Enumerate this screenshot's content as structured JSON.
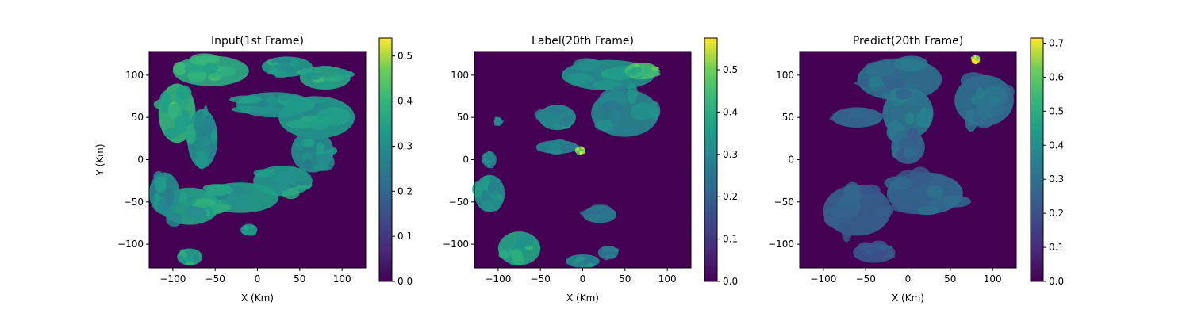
{
  "chart_data": [
    {
      "type": "heatmap",
      "title": "Input(1st Frame)",
      "xlabel": "X (Km)",
      "ylabel": "Y (Km)",
      "xlim": [
        -128,
        128
      ],
      "ylim": [
        -128,
        128
      ],
      "xticks": [
        -100,
        -50,
        0,
        50,
        100
      ],
      "yticks": [
        -100,
        -50,
        0,
        50,
        100
      ],
      "xtick_labels": [
        "−100",
        "−50",
        "0",
        "50",
        "100"
      ],
      "ytick_labels": [
        "−100",
        "−50",
        "0",
        "50",
        "100"
      ],
      "colormap": "viridis",
      "background_color": "#440154",
      "colorbar": {
        "min": 0,
        "max": 0.54,
        "ticks": [
          0,
          0.1,
          0.2,
          0.3,
          0.4,
          0.5
        ],
        "tick_labels": [
          "0.0",
          "0.1",
          "0.2",
          "0.3",
          "0.4",
          "0.5"
        ]
      },
      "features": [
        {
          "cx": -55,
          "cy": 105,
          "rx": 45,
          "ry": 18,
          "value": 0.37
        },
        {
          "cx": 35,
          "cy": 110,
          "rx": 30,
          "ry": 12,
          "value": 0.33
        },
        {
          "cx": 80,
          "cy": 97,
          "rx": 30,
          "ry": 14,
          "value": 0.36
        },
        {
          "cx": -95,
          "cy": 55,
          "rx": 22,
          "ry": 35,
          "value": 0.4
        },
        {
          "cx": -65,
          "cy": 25,
          "rx": 18,
          "ry": 35,
          "value": 0.32
        },
        {
          "cx": 20,
          "cy": 65,
          "rx": 45,
          "ry": 15,
          "value": 0.31
        },
        {
          "cx": 70,
          "cy": 50,
          "rx": 45,
          "ry": 25,
          "value": 0.33
        },
        {
          "cx": 65,
          "cy": 10,
          "rx": 25,
          "ry": 25,
          "value": 0.3
        },
        {
          "cx": 30,
          "cy": -25,
          "rx": 35,
          "ry": 18,
          "value": 0.33
        },
        {
          "cx": -20,
          "cy": -45,
          "rx": 45,
          "ry": 18,
          "value": 0.34
        },
        {
          "cx": -80,
          "cy": -55,
          "rx": 35,
          "ry": 22,
          "value": 0.35
        },
        {
          "cx": -110,
          "cy": -40,
          "rx": 18,
          "ry": 25,
          "value": 0.3
        },
        {
          "cx": -80,
          "cy": -115,
          "rx": 15,
          "ry": 10,
          "value": 0.35
        },
        {
          "cx": -10,
          "cy": -83,
          "rx": 10,
          "ry": 7,
          "value": 0.33
        }
      ]
    },
    {
      "type": "heatmap",
      "title": "Label(20th Frame)",
      "xlabel": "X (Km)",
      "xlim": [
        -128,
        128
      ],
      "ylim": [
        -128,
        128
      ],
      "xticks": [
        -100,
        -50,
        0,
        50,
        100
      ],
      "yticks": [
        -100,
        -50,
        0,
        50,
        100
      ],
      "xtick_labels": [
        "−100",
        "−50",
        "0",
        "50",
        "100"
      ],
      "ytick_labels": [
        "−100",
        "−50",
        "0",
        "50",
        "100"
      ],
      "colormap": "viridis",
      "background_color": "#440154",
      "colorbar": {
        "min": 0,
        "max": 0.575,
        "ticks": [
          0,
          0.1,
          0.2,
          0.3,
          0.4,
          0.5
        ],
        "tick_labels": [
          "0.0",
          "0.1",
          "0.2",
          "0.3",
          "0.4",
          "0.5"
        ]
      },
      "features": [
        {
          "cx": 30,
          "cy": 100,
          "rx": 55,
          "ry": 18,
          "value": 0.33
        },
        {
          "cx": 70,
          "cy": 105,
          "rx": 20,
          "ry": 10,
          "value": 0.45
        },
        {
          "cx": 50,
          "cy": 55,
          "rx": 40,
          "ry": 28,
          "value": 0.3
        },
        {
          "cx": -30,
          "cy": 50,
          "rx": 22,
          "ry": 15,
          "value": 0.32
        },
        {
          "cx": -30,
          "cy": 15,
          "rx": 25,
          "ry": 8,
          "value": 0.3
        },
        {
          "cx": -3,
          "cy": 11,
          "rx": 6,
          "ry": 5,
          "value": 0.52
        },
        {
          "cx": -110,
          "cy": -40,
          "rx": 18,
          "ry": 22,
          "value": 0.32
        },
        {
          "cx": -110,
          "cy": 0,
          "rx": 8,
          "ry": 10,
          "value": 0.3
        },
        {
          "cx": -75,
          "cy": -105,
          "rx": 25,
          "ry": 20,
          "value": 0.38
        },
        {
          "cx": 20,
          "cy": -65,
          "rx": 20,
          "ry": 10,
          "value": 0.28
        },
        {
          "cx": 0,
          "cy": -120,
          "rx": 20,
          "ry": 8,
          "value": 0.3
        },
        {
          "cx": 30,
          "cy": -110,
          "rx": 12,
          "ry": 8,
          "value": 0.27
        },
        {
          "cx": -100,
          "cy": 45,
          "rx": 5,
          "ry": 5,
          "value": 0.32
        }
      ]
    },
    {
      "type": "heatmap",
      "title": "Predict(20th Frame)",
      "xlabel": "X (Km)",
      "xlim": [
        -128,
        128
      ],
      "ylim": [
        -128,
        128
      ],
      "xticks": [
        -100,
        -50,
        0,
        50,
        100
      ],
      "yticks": [
        -100,
        -50,
        0,
        50,
        100
      ],
      "xtick_labels": [
        "−100",
        "−50",
        "0",
        "50",
        "100"
      ],
      "ytick_labels": [
        "−100",
        "−50",
        "0",
        "50",
        "100"
      ],
      "colormap": "viridis",
      "background_color": "#440154",
      "colorbar": {
        "min": 0,
        "max": 0.715,
        "ticks": [
          0,
          0.1,
          0.2,
          0.3,
          0.4,
          0.5,
          0.6,
          0.7
        ],
        "tick_labels": [
          "0.0",
          "0.1",
          "0.2",
          "0.3",
          "0.4",
          "0.5",
          "0.6",
          "0.7"
        ]
      },
      "features": [
        {
          "cx": -10,
          "cy": 95,
          "rx": 50,
          "ry": 25,
          "value": 0.3
        },
        {
          "cx": 0,
          "cy": 55,
          "rx": 30,
          "ry": 30,
          "value": 0.32
        },
        {
          "cx": -60,
          "cy": 50,
          "rx": 30,
          "ry": 12,
          "value": 0.27
        },
        {
          "cx": 90,
          "cy": 70,
          "rx": 35,
          "ry": 30,
          "value": 0.3
        },
        {
          "cx": 0,
          "cy": 15,
          "rx": 20,
          "ry": 20,
          "value": 0.27
        },
        {
          "cx": -60,
          "cy": -60,
          "rx": 40,
          "ry": 30,
          "value": 0.25
        },
        {
          "cx": 20,
          "cy": -40,
          "rx": 45,
          "ry": 25,
          "value": 0.27
        },
        {
          "cx": -40,
          "cy": -110,
          "rx": 25,
          "ry": 12,
          "value": 0.22
        },
        {
          "cx": 80,
          "cy": 118,
          "rx": 5,
          "ry": 5,
          "value": 0.7
        }
      ]
    }
  ]
}
